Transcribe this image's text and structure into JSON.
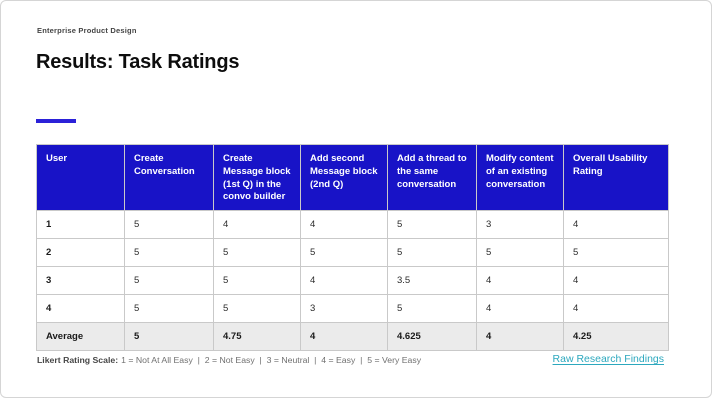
{
  "slide": {
    "eyebrow": "Enterprise Product Design",
    "title": "Results: Task Ratings"
  },
  "table": {
    "columns": [
      "User",
      "Create Conversation",
      "Create Message block (1st Q) in the convo builder",
      "Add second Message block (2nd Q)",
      "Add a thread to the same conversation",
      "Modify content of an existing conversation",
      "Overall Usability Rating"
    ],
    "rows": [
      {
        "user": "1",
        "values": [
          "5",
          "4",
          "4",
          "5",
          "3",
          "4"
        ]
      },
      {
        "user": "2",
        "values": [
          "5",
          "5",
          "5",
          "5",
          "5",
          "5"
        ]
      },
      {
        "user": "3",
        "values": [
          "5",
          "5",
          "4",
          "3.5",
          "4",
          "4"
        ]
      },
      {
        "user": "4",
        "values": [
          "5",
          "5",
          "3",
          "5",
          "4",
          "4"
        ]
      }
    ],
    "average": {
      "label": "Average",
      "values": [
        "5",
        "4.75",
        "4",
        "4.625",
        "4",
        "4.25"
      ]
    }
  },
  "footer": {
    "legend_label": "Likert Rating Scale:",
    "legend_items": [
      "1 = Not At All Easy",
      "2 = Not Easy",
      "3 = Neutral",
      "4 = Easy",
      "5 = Very Easy"
    ],
    "link_label": "Raw Research Findings"
  },
  "colors": {
    "header_bg": "#1813c7",
    "accent": "#2b21d8",
    "average_row_bg": "#ebebeb",
    "link": "#2ca8be",
    "table_border": "#c9c9c9"
  }
}
